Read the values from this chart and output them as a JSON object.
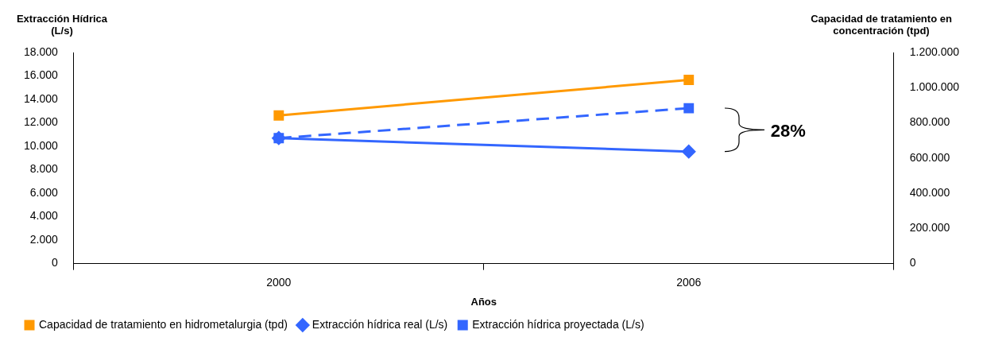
{
  "chart_data": {
    "type": "line",
    "xlabel": "Años",
    "ylabel": "Extracción Hídrica (L/s)",
    "y2label": "Capacidad de tratamiento en concentración (tpd)",
    "categories": [
      "2000",
      "2006"
    ],
    "series": [
      {
        "name": "Extracción hídrica proyectada (L/s)",
        "color": "#3366ff",
        "values": [
          10700,
          13250
        ],
        "marker": "square",
        "line_style": "dashed"
      },
      {
        "name": "Extracción hídrica real (L/s)",
        "color": "#3366ff",
        "values": [
          10700,
          9550
        ],
        "marker": "diamond",
        "line_style": "solid"
      },
      {
        "name": "Capacidad de tratamiento en hidrometalurgia (tpd)",
        "color": "#ff9900",
        "values": [
          842000,
          1044000
        ],
        "marker": "square",
        "line_style": "solid",
        "axis": "y2"
      }
    ],
    "ylim": [
      0,
      18000
    ],
    "yticks": [
      0,
      {
        "value": 2000,
        "label": "2.000"
      },
      {
        "value": 4000,
        "label": "4.000"
      },
      {
        "value": 6000,
        "label": "6.000"
      },
      {
        "value": 8000,
        "label": "8.000"
      },
      {
        "value": 10000,
        "label": "10.000"
      },
      {
        "value": 12000,
        "label": "12.000"
      },
      {
        "value": 14000,
        "label": "14.000"
      },
      {
        "value": 16000,
        "label": "16.000"
      },
      {
        "value": 18000,
        "label": "18.000"
      }
    ],
    "y2lim": [
      0,
      1200000
    ],
    "y2ticks": [
      0,
      {
        "value": 200000,
        "label": "200.000"
      },
      {
        "value": 400000,
        "label": "400.000"
      },
      {
        "value": 600000,
        "label": "600.000"
      },
      {
        "value": 800000,
        "label": "800.000"
      },
      {
        "value": 1000000,
        "label": "1.000.000"
      },
      {
        "value": 1200000,
        "label": "1.200.000"
      }
    ],
    "annotations": [
      "28%"
    ],
    "grid": false,
    "legend": "bottom"
  }
}
